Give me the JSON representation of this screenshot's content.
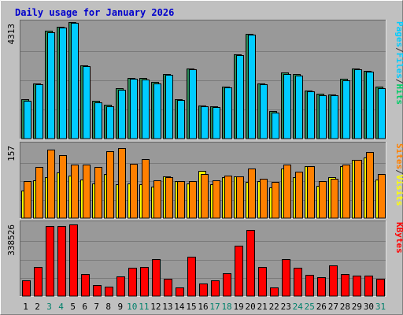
{
  "chart_data": {
    "type": "bar",
    "title": "Daily usage for January 2026",
    "categories": [
      "1",
      "2",
      "3",
      "4",
      "5",
      "6",
      "7",
      "8",
      "9",
      "10",
      "11",
      "12",
      "13",
      "14",
      "15",
      "16",
      "17",
      "18",
      "19",
      "20",
      "21",
      "22",
      "23",
      "24",
      "25",
      "26",
      "27",
      "28",
      "29",
      "30",
      "31"
    ],
    "weekend_days": [
      "3",
      "4",
      "10",
      "11",
      "17",
      "18",
      "24",
      "25",
      "31"
    ],
    "colors": {
      "title": "#0000cc",
      "hits": "#00cc66",
      "files": "#00ccff",
      "pages": "#00ccff",
      "visits": "#ffff00",
      "sites": "#ff8000",
      "kbytes": "#ff0000",
      "weekend_label": "#00806b",
      "weekday_label": "#000000",
      "background": "#c0c0c0",
      "panel": "#999999",
      "grid": "#7a7a7a"
    },
    "panels": [
      {
        "id": "hits-files-pages",
        "ymax": 4313,
        "ymax_label": "4313",
        "ylabel": [
          "Pages",
          "/",
          "Files",
          "/",
          "Hits"
        ],
        "ylabel_colors": [
          "#00ccff",
          "#333333",
          "#00ccff",
          "#333333",
          "#00cc66"
        ],
        "series": [
          {
            "name": "Hits",
            "color": "#2e8b57",
            "values": [
              1450,
              2050,
              3980,
              4150,
              4313,
              2720,
              1390,
              1240,
              1860,
              2250,
              2250,
              2090,
              2390,
              1470,
              2600,
              1230,
              1200,
              1920,
              3130,
              3880,
              2050,
              1010,
              2440,
              2380,
              1780,
              1650,
              1640,
              2210,
              2600,
              2510,
              1910
            ]
          },
          {
            "name": "Files",
            "color": "#00ccff",
            "values": [
              1410,
              2000,
              3930,
              4100,
              4280,
              2680,
              1350,
              1190,
              1810,
              2210,
              2200,
              2050,
              2350,
              1430,
              2560,
              1190,
              1160,
              1890,
              3090,
              3840,
              2010,
              970,
              2390,
              2330,
              1740,
              1610,
              1600,
              2170,
              2560,
              2470,
              1870
            ]
          }
        ]
      },
      {
        "id": "visits-sites",
        "ymax": 157,
        "ymax_label": "157",
        "ylabel": [
          "Sites",
          "/",
          "Visits"
        ],
        "ylabel_colors": [
          "#ff8000",
          "#333333",
          "#ffff00"
        ],
        "series": [
          {
            "name": "Visits",
            "color": "#ffff00",
            "values": [
              59,
              81,
              87,
              97,
              91,
              82,
              73,
              93,
              72,
              73,
              72,
              67,
              88,
              78,
              74,
              101,
              72,
              87,
              88,
              77,
              78,
              65,
              105,
              87,
              110,
              68,
              87,
              110,
              124,
              128,
              82
            ]
          },
          {
            "name": "Sites",
            "color": "#ff8000",
            "values": [
              79,
              108,
              145,
              133,
              114,
              114,
              108,
              142,
              148,
              116,
              125,
              80,
              87,
              78,
              78,
              93,
              80,
              91,
              88,
              106,
              84,
              77,
              113,
              99,
              111,
              78,
              83,
              113,
              123,
              141,
              93
            ]
          }
        ]
      },
      {
        "id": "kbytes",
        "ymax": 338526,
        "ymax_label": "338526",
        "ylabel": [
          "KBytes"
        ],
        "ylabel_colors": [
          "#ff0000"
        ],
        "series": [
          {
            "name": "KBytes",
            "color": "#ff0000",
            "values": [
              72000,
              136000,
              323000,
              323000,
              333000,
              102000,
              52000,
              43000,
              92000,
              131000,
              133000,
              170000,
              80000,
              39000,
              182000,
              57000,
              72000,
              104000,
              233000,
              305000,
              136000,
              41000,
              170000,
              131000,
              97000,
              89000,
              141000,
              103000,
              96000,
              94000,
              80000
            ]
          }
        ]
      }
    ]
  }
}
